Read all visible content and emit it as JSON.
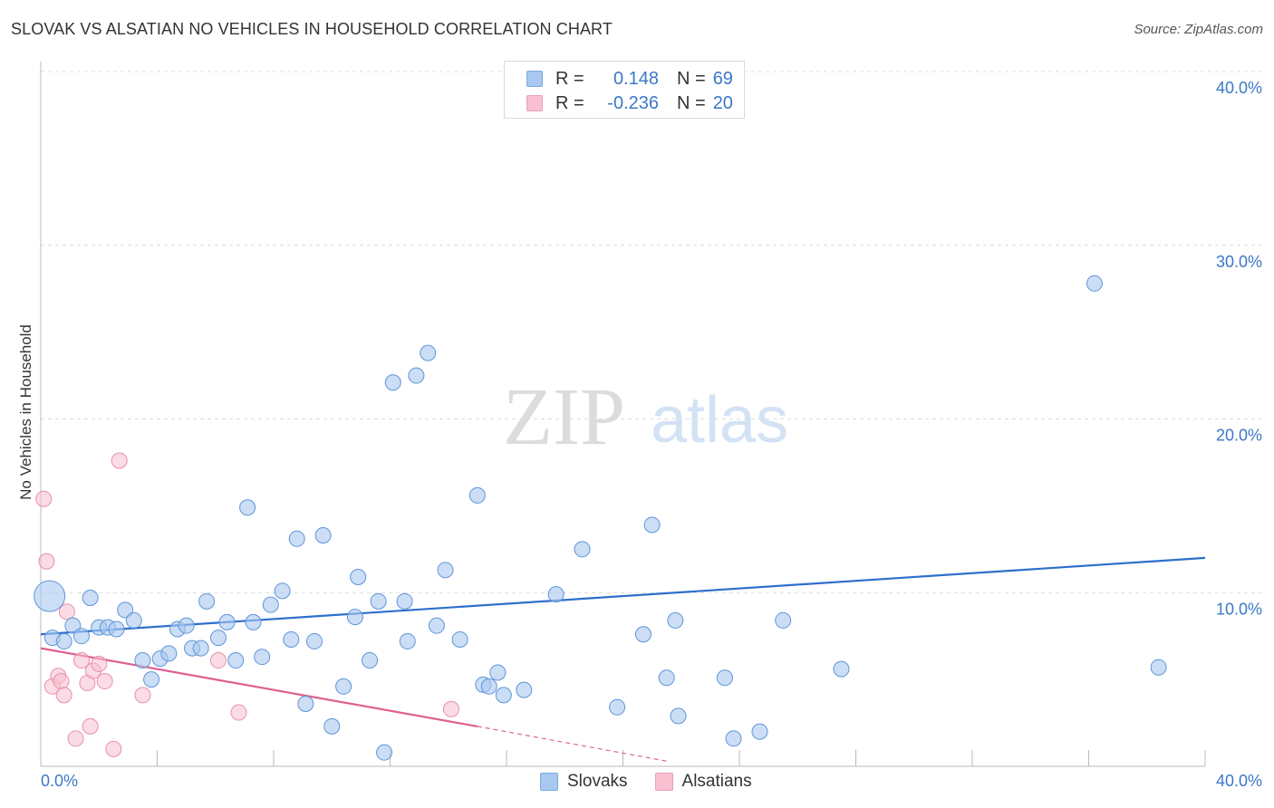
{
  "title": "SLOVAK VS ALSATIAN NO VEHICLES IN HOUSEHOLD CORRELATION CHART",
  "source": "Source: ZipAtlas.com",
  "watermark": {
    "zip": "ZIP",
    "atlas": "atlas"
  },
  "legend": {
    "rows": [
      {
        "r_label": "R =",
        "r_value": "0.148",
        "n_label": "N =",
        "n_value": "69",
        "color": "#a8c8f0",
        "border": "#7aaae0"
      },
      {
        "r_label": "R =",
        "r_value": "-0.236",
        "n_label": "N =",
        "n_value": "20",
        "color": "#f8c0d0",
        "border": "#eaa0b8"
      }
    ]
  },
  "bottom_legend": [
    {
      "label": "Slovaks",
      "color": "#a8c8f0",
      "border": "#7aaae0"
    },
    {
      "label": "Alsatians",
      "color": "#f8c0d0",
      "border": "#eaa0b8"
    }
  ],
  "chart_data": {
    "type": "scatter",
    "xlabel": "",
    "ylabel": "No Vehicles in Household",
    "xlim": [
      0,
      40
    ],
    "ylim": [
      0,
      40
    ],
    "x_tick_labels": [
      "0.0%",
      "40.0%"
    ],
    "y_ticks": [
      10,
      20,
      30,
      40
    ],
    "y_tick_labels": [
      "10.0%",
      "20.0%",
      "30.0%",
      "40.0%"
    ],
    "grid": true,
    "colors": {
      "slovaks_fill": "#a8c8f0",
      "slovaks_line": "#2e6fcc",
      "alsatians_fill": "#f8c0d0",
      "alsatians_line": "#e06090",
      "axis_label": "#3b78c8"
    },
    "series": [
      {
        "name": "Slovaks",
        "points": [
          [
            0.3,
            9.8
          ],
          [
            0.4,
            7.4
          ],
          [
            0.8,
            7.2
          ],
          [
            1.1,
            8.1
          ],
          [
            1.4,
            7.5
          ],
          [
            1.7,
            9.7
          ],
          [
            2.0,
            8.0
          ],
          [
            2.3,
            8.0
          ],
          [
            2.6,
            7.9
          ],
          [
            2.9,
            9.0
          ],
          [
            3.2,
            8.4
          ],
          [
            3.5,
            6.1
          ],
          [
            3.8,
            5.0
          ],
          [
            4.1,
            6.2
          ],
          [
            4.4,
            6.5
          ],
          [
            4.7,
            7.9
          ],
          [
            5.0,
            8.1
          ],
          [
            5.2,
            6.8
          ],
          [
            5.5,
            6.8
          ],
          [
            5.7,
            9.5
          ],
          [
            6.1,
            7.4
          ],
          [
            6.4,
            8.3
          ],
          [
            6.7,
            6.1
          ],
          [
            7.1,
            14.9
          ],
          [
            7.3,
            8.3
          ],
          [
            7.6,
            6.3
          ],
          [
            7.9,
            9.3
          ],
          [
            8.3,
            10.1
          ],
          [
            8.6,
            7.3
          ],
          [
            8.8,
            13.1
          ],
          [
            9.1,
            3.6
          ],
          [
            9.4,
            7.2
          ],
          [
            9.7,
            13.3
          ],
          [
            10.0,
            2.3
          ],
          [
            10.4,
            4.6
          ],
          [
            10.8,
            8.6
          ],
          [
            10.9,
            10.9
          ],
          [
            11.3,
            6.1
          ],
          [
            11.6,
            9.5
          ],
          [
            11.8,
            0.8
          ],
          [
            12.1,
            22.1
          ],
          [
            12.5,
            9.5
          ],
          [
            12.6,
            7.2
          ],
          [
            12.9,
            22.5
          ],
          [
            13.3,
            23.8
          ],
          [
            13.6,
            8.1
          ],
          [
            13.9,
            11.3
          ],
          [
            14.4,
            7.3
          ],
          [
            15.0,
            15.6
          ],
          [
            15.2,
            4.7
          ],
          [
            15.4,
            4.6
          ],
          [
            15.7,
            5.4
          ],
          [
            15.9,
            4.1
          ],
          [
            16.6,
            4.4
          ],
          [
            17.7,
            9.9
          ],
          [
            18.6,
            12.5
          ],
          [
            19.8,
            3.4
          ],
          [
            20.7,
            7.6
          ],
          [
            21.0,
            13.9
          ],
          [
            21.5,
            5.1
          ],
          [
            21.8,
            8.4
          ],
          [
            21.9,
            2.9
          ],
          [
            23.5,
            5.1
          ],
          [
            23.8,
            1.6
          ],
          [
            24.7,
            2.0
          ],
          [
            25.5,
            8.4
          ],
          [
            27.5,
            5.6
          ],
          [
            36.2,
            27.8
          ],
          [
            38.4,
            5.7
          ]
        ]
      },
      {
        "name": "Alsatians",
        "points": [
          [
            0.1,
            15.4
          ],
          [
            0.2,
            11.8
          ],
          [
            0.4,
            4.6
          ],
          [
            0.6,
            5.2
          ],
          [
            0.7,
            4.9
          ],
          [
            0.8,
            4.1
          ],
          [
            0.9,
            8.9
          ],
          [
            1.2,
            1.6
          ],
          [
            1.4,
            6.1
          ],
          [
            1.6,
            4.8
          ],
          [
            1.7,
            2.3
          ],
          [
            1.8,
            5.5
          ],
          [
            2.0,
            5.9
          ],
          [
            2.2,
            4.9
          ],
          [
            2.5,
            1.0
          ],
          [
            2.7,
            17.6
          ],
          [
            3.5,
            4.1
          ],
          [
            6.1,
            6.1
          ],
          [
            6.8,
            3.1
          ],
          [
            14.1,
            3.3
          ]
        ]
      }
    ],
    "trend_lines": [
      {
        "name": "Slovaks",
        "x": [
          0,
          40
        ],
        "y": [
          7.6,
          12.0
        ]
      },
      {
        "name": "Alsatians",
        "x": [
          0,
          15,
          21.5
        ],
        "y": [
          6.8,
          2.3,
          0.3
        ]
      }
    ]
  }
}
